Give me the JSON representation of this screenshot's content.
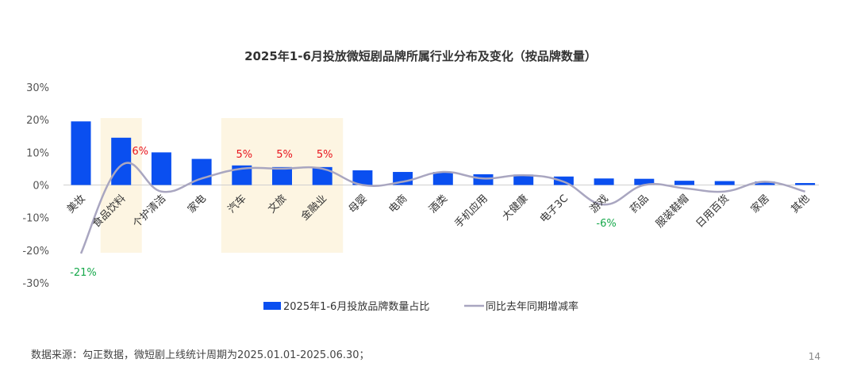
{
  "chart_data": {
    "type": "bar",
    "title": "2025年1-6月投放微短剧品牌所属行业分布及变化（按品牌数量）",
    "categories": [
      "美妆",
      "食品饮料",
      "个护清洁",
      "家电",
      "汽车",
      "文旅",
      "金融业",
      "母婴",
      "电商",
      "酒类",
      "手机应用",
      "大健康",
      "电子3C",
      "游戏",
      "药品",
      "服装鞋帽",
      "日用百货",
      "家居",
      "其他"
    ],
    "series": [
      {
        "name": "2025年1-6月投放品牌数量占比",
        "type": "bar",
        "color": "#0a4ff0",
        "values": [
          19.5,
          14.5,
          10.0,
          8.0,
          6.0,
          5.5,
          5.5,
          4.5,
          4.0,
          4.0,
          3.3,
          3.2,
          2.6,
          2.0,
          1.9,
          1.3,
          1.2,
          1.1,
          0.6
        ]
      },
      {
        "name": "同比去年同期增减率",
        "type": "line",
        "color": "#a9a6c0",
        "values": [
          -21,
          6,
          -2,
          2,
          5,
          5,
          5,
          0,
          1,
          4,
          2,
          3,
          1,
          -6,
          0,
          -1,
          -2,
          1,
          -2
        ]
      }
    ],
    "ylim": [
      -30,
      30
    ],
    "yticks": [
      "30%",
      "20%",
      "10%",
      "0%",
      "-10%",
      "-20%",
      "-30%"
    ],
    "annotations": [
      {
        "category": "美妆",
        "text": "-21%",
        "color": "green"
      },
      {
        "category": "食品饮料",
        "text": "6%",
        "color": "red"
      },
      {
        "category": "汽车",
        "text": "5%",
        "color": "red"
      },
      {
        "category": "文旅",
        "text": "5%",
        "color": "red"
      },
      {
        "category": "金融业",
        "text": "5%",
        "color": "red"
      },
      {
        "category": "游戏",
        "text": "-6%",
        "color": "green"
      }
    ],
    "highlight_groups": [
      [
        "食品饮料"
      ],
      [
        "汽车",
        "文旅",
        "金融业"
      ]
    ],
    "legend_position": "bottom"
  },
  "footer": {
    "source": "数据来源：勾正数据，微短剧上线统计周期为2025.01.01-2025.06.30；",
    "page_number": "14"
  }
}
